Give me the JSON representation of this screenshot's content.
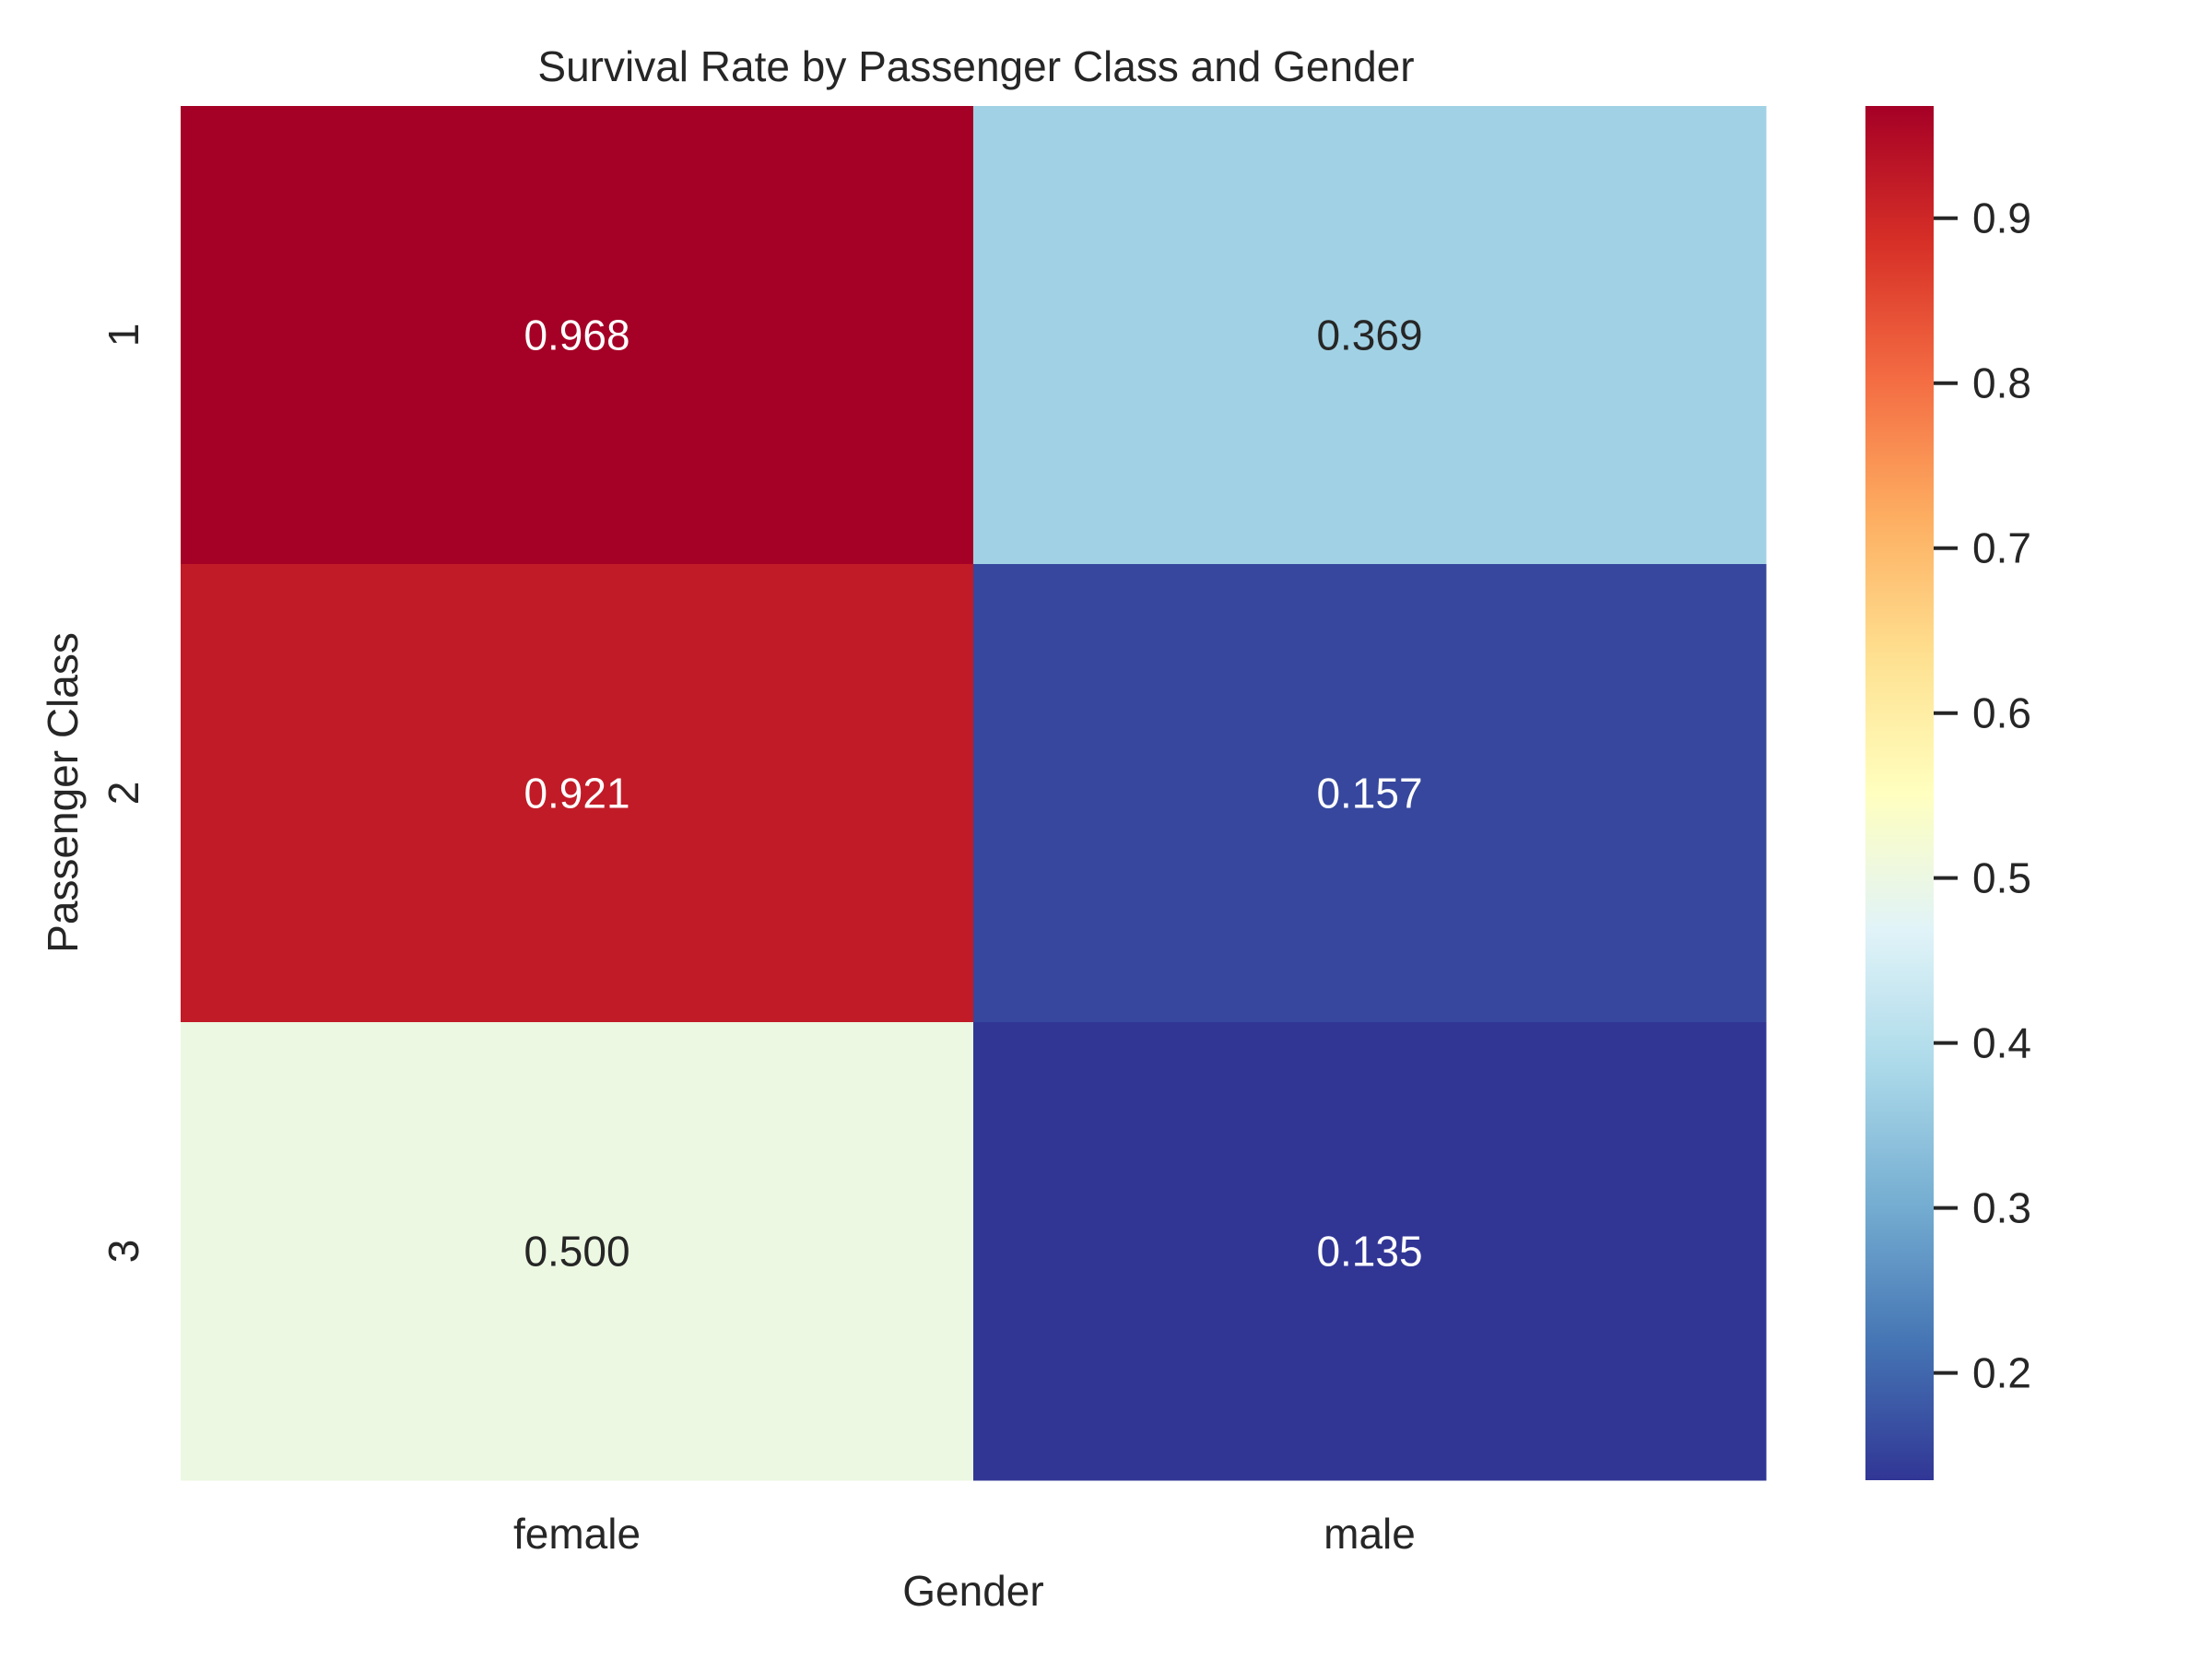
{
  "chart_data": {
    "type": "heatmap",
    "title": "Survival Rate by Passenger Class and Gender",
    "xlabel": "Gender",
    "ylabel": "Passenger Class",
    "x_categories": [
      "female",
      "male"
    ],
    "y_categories": [
      "1",
      "2",
      "3"
    ],
    "values": [
      [
        0.968,
        0.369
      ],
      [
        0.921,
        0.157
      ],
      [
        0.5,
        0.135
      ]
    ],
    "value_labels": [
      [
        "0.968",
        "0.369"
      ],
      [
        "0.921",
        "0.157"
      ],
      [
        "0.500",
        "0.135"
      ]
    ],
    "colormap": "RdYlBu_r",
    "colormap_stops": [
      "#313695",
      "#4575b4",
      "#74add1",
      "#abd9e9",
      "#e0f3f8",
      "#ffffbf",
      "#fee090",
      "#fdae61",
      "#f46d43",
      "#d73027",
      "#a50026"
    ],
    "vmin": 0.135,
    "vmax": 0.968,
    "colorbar_ticks": [
      0.2,
      0.3,
      0.4,
      0.5,
      0.6,
      0.7,
      0.8,
      0.9
    ],
    "colorbar_tick_labels": [
      "0.2",
      "0.3",
      "0.4",
      "0.5",
      "0.6",
      "0.7",
      "0.8",
      "0.9"
    ],
    "grid": false
  }
}
